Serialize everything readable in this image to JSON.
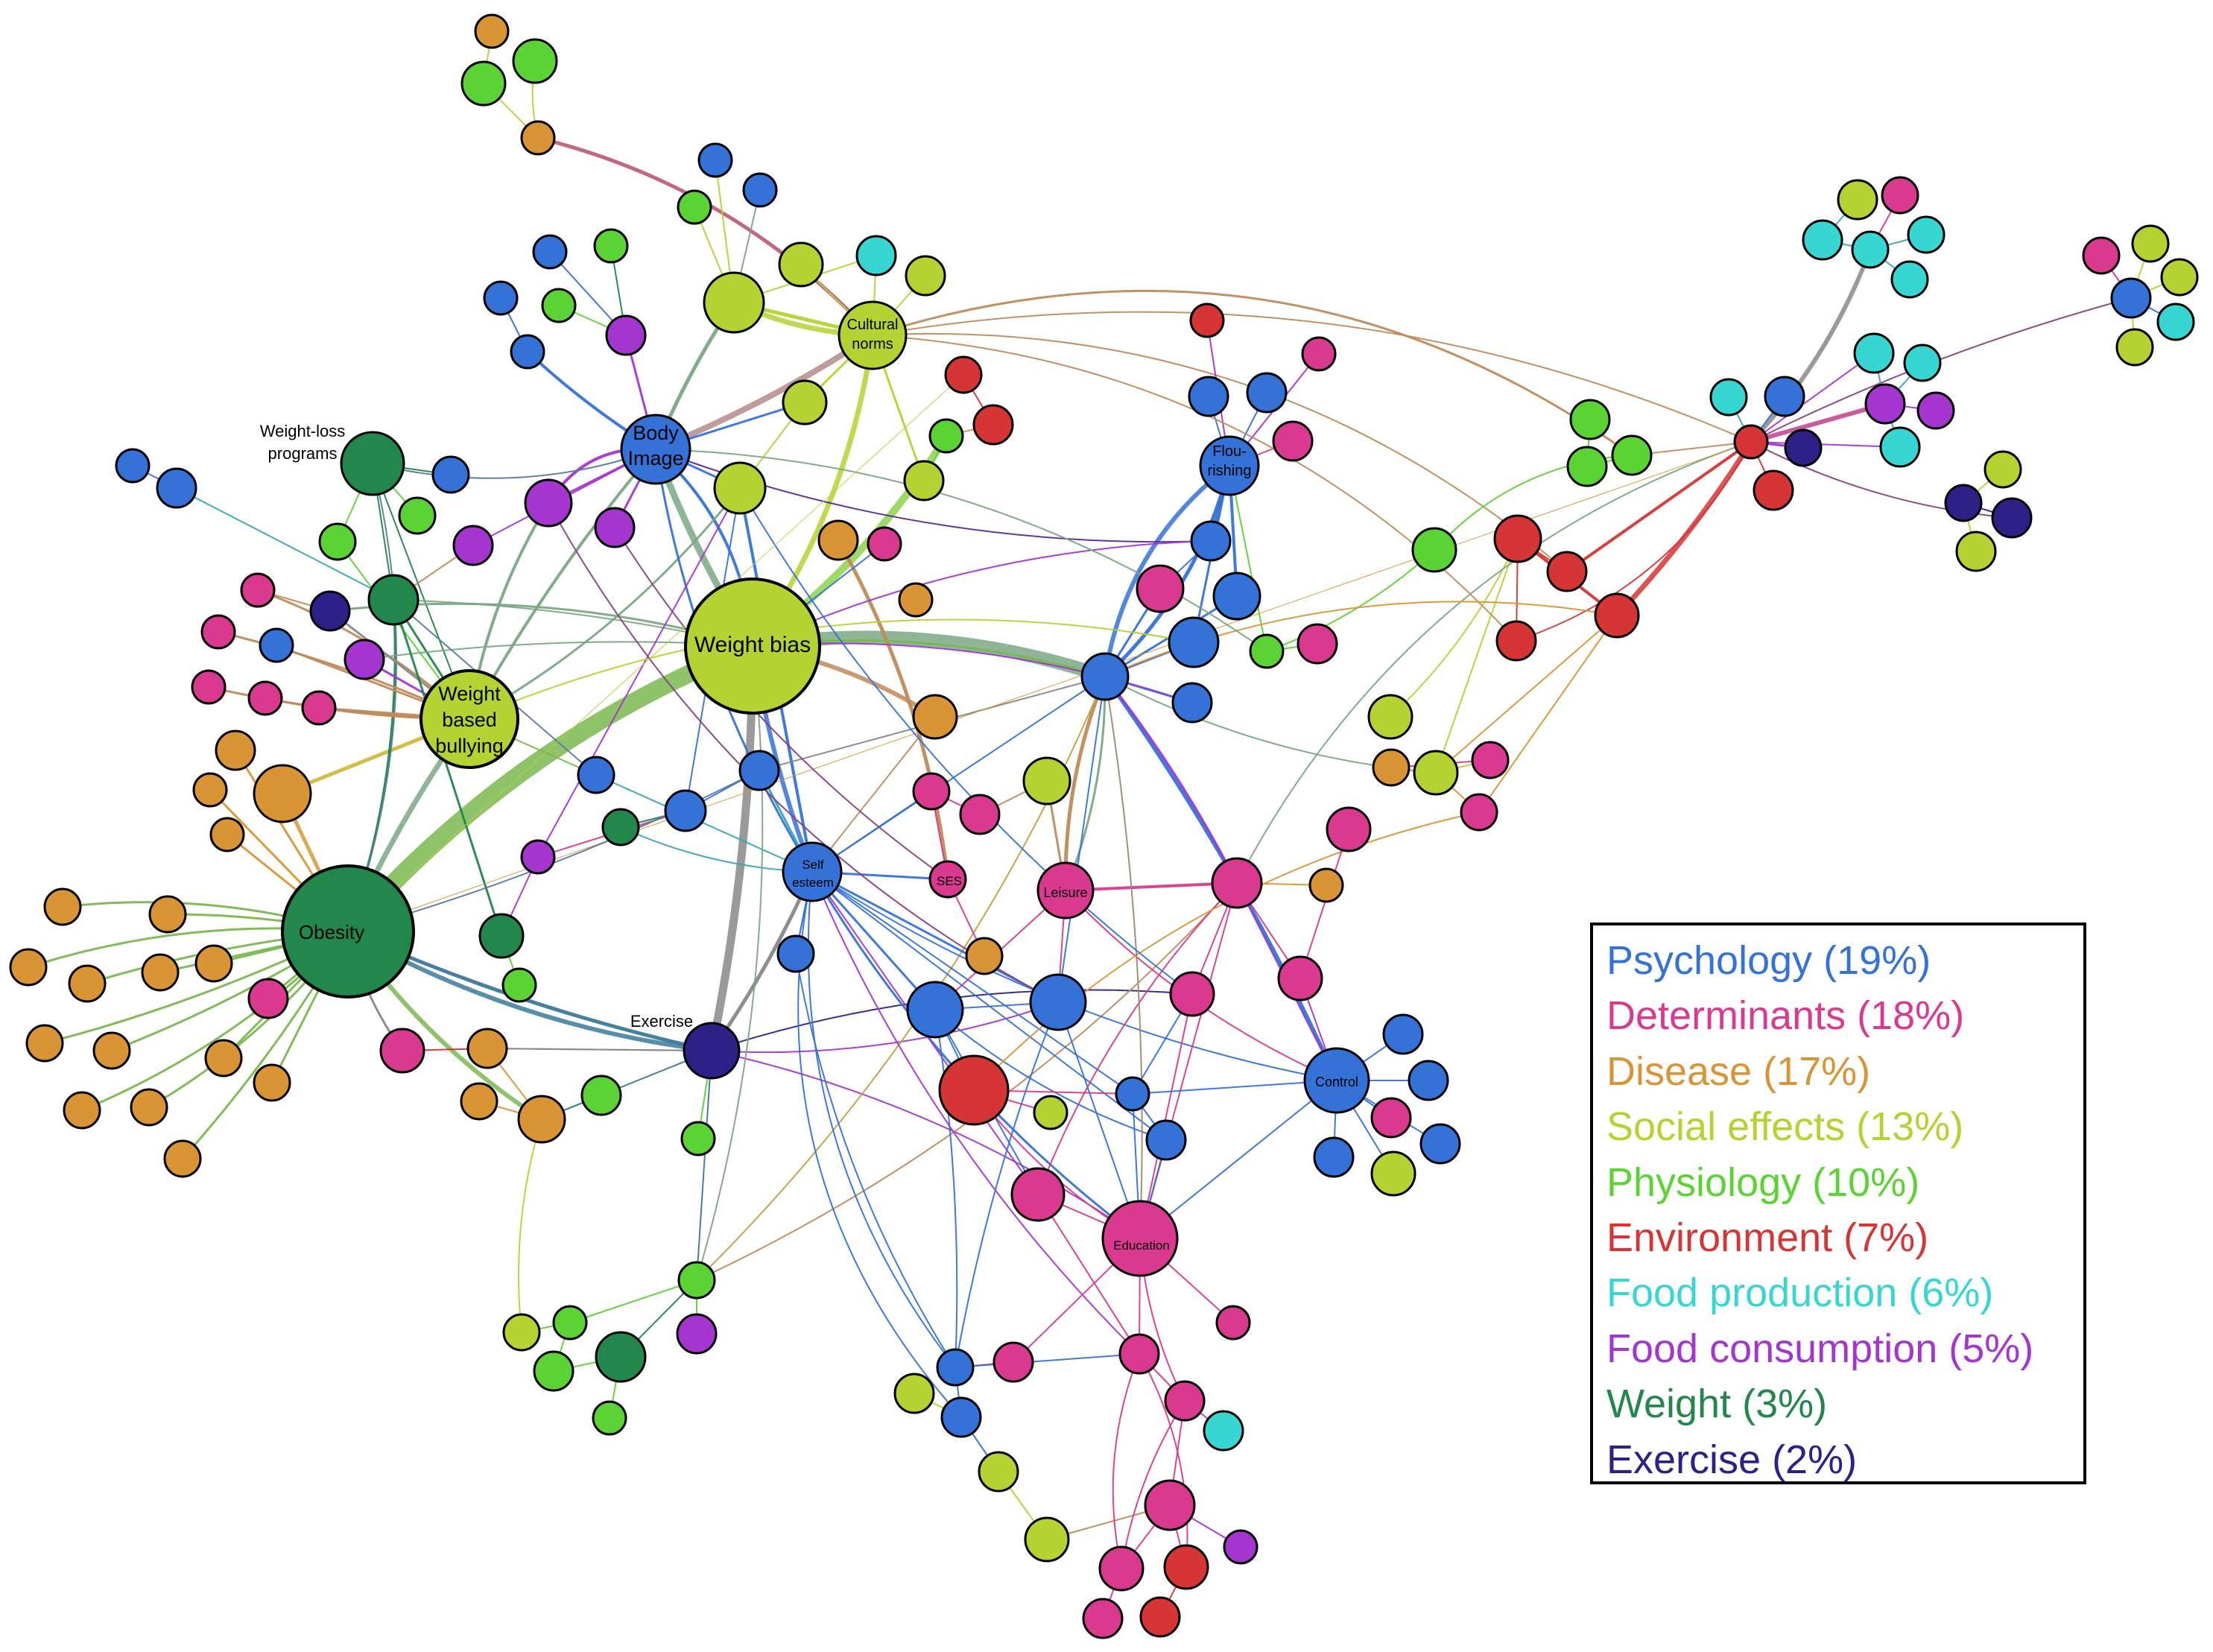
{
  "colors": {
    "psychology": "#3572d8",
    "determinants": "#d93a8f",
    "disease": "#d99535",
    "social": "#b5d233",
    "physiology": "#5cd335",
    "environment": "#d63535",
    "food_production": "#38d6d3",
    "food_consumption": "#a535cf",
    "weight": "#21874b",
    "exercise": "#2d2188"
  },
  "labels": {
    "weight_bias": "Weight bias",
    "obesity": "Obesity",
    "weight_based_bullying": [
      "Weight",
      "based",
      "bullying"
    ],
    "body_image": [
      "Body",
      "Image"
    ],
    "cultural_norms": [
      "Cultural",
      "norms"
    ],
    "flourishing": [
      "Flou-",
      "rishing"
    ],
    "self_esteem": [
      "Self",
      "esteem"
    ],
    "ses": "SES",
    "leisure": "Leisure",
    "control": "Control",
    "education": "Education",
    "exercise": "Exercise",
    "weight_loss_programs": [
      "Weight-loss",
      "programs"
    ]
  },
  "legend": [
    {
      "label": "Psychology (19%)",
      "color": "#3572d8"
    },
    {
      "label": "Determinants (18%)",
      "color": "#d93a8f"
    },
    {
      "label": "Disease (17%)",
      "color": "#d99535"
    },
    {
      "label": "Social effects (13%)",
      "color": "#b5d233"
    },
    {
      "label": "Physiology (10%)",
      "color": "#5cd335"
    },
    {
      "label": "Environment (7%)",
      "color": "#d63535"
    },
    {
      "label": "Food production (6%)",
      "color": "#38d6d3"
    },
    {
      "label": "Food consumption (5%)",
      "color": "#a535cf"
    },
    {
      "label": "Weight (3%)",
      "color": "#21874b"
    },
    {
      "label": "Exercise (2%)",
      "color": "#2d2188"
    }
  ]
}
